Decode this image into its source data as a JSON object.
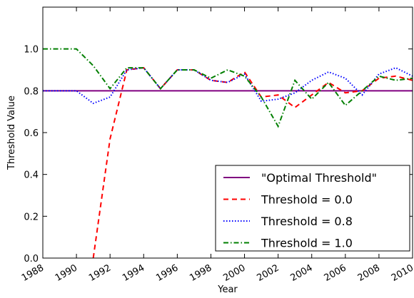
{
  "chart_data": {
    "type": "line",
    "xlabel": "Year",
    "ylabel": "Threshold Value",
    "x": [
      1988,
      1989,
      1990,
      1991,
      1992,
      1993,
      1994,
      1995,
      1996,
      1997,
      1998,
      1999,
      2000,
      2001,
      2002,
      2003,
      2004,
      2005,
      2006,
      2007,
      2008,
      2009,
      2010
    ],
    "series": [
      {
        "name": "\"Optimal Threshold\"",
        "color": "#800080",
        "linestyle": "solid",
        "values": [
          0.8,
          0.8,
          0.8,
          0.8,
          0.8,
          0.8,
          0.8,
          0.8,
          0.8,
          0.8,
          0.8,
          0.8,
          0.8,
          0.8,
          0.8,
          0.8,
          0.8,
          0.8,
          0.8,
          0.8,
          0.8,
          0.8,
          0.8
        ]
      },
      {
        "name": "Threshold = 0.0",
        "color": "#ff0000",
        "linestyle": "dashed",
        "values": [
          null,
          null,
          null,
          0,
          0.57,
          0.9,
          0.91,
          0.81,
          0.9,
          0.9,
          0.85,
          0.84,
          0.89,
          0.77,
          0.78,
          0.72,
          0.78,
          0.84,
          0.79,
          0.8,
          0.86,
          0.87,
          0.85
        ]
      },
      {
        "name": "Threshold = 0.8",
        "color": "#0000ff",
        "linestyle": "dotted",
        "values": [
          0.8,
          0.8,
          0.8,
          0.74,
          0.77,
          0.9,
          0.91,
          0.81,
          0.9,
          0.9,
          0.85,
          0.84,
          0.88,
          0.75,
          0.76,
          0.79,
          0.85,
          0.89,
          0.86,
          0.78,
          0.88,
          0.91,
          0.87
        ]
      },
      {
        "name": "Threshold = 1.0",
        "color": "#007f00",
        "linestyle": "dashdot",
        "values": [
          1.0,
          1.0,
          1.0,
          0.92,
          0.81,
          0.91,
          0.91,
          0.81,
          0.9,
          0.9,
          0.86,
          0.9,
          0.87,
          0.77,
          0.63,
          0.85,
          0.76,
          0.84,
          0.73,
          0.8,
          0.87,
          0.85,
          0.86
        ]
      }
    ],
    "xlim": [
      1988,
      2010
    ],
    "xticks": [
      1988,
      1990,
      1992,
      1994,
      1996,
      1998,
      2000,
      2002,
      2004,
      2006,
      2008,
      2010
    ],
    "ylim": [
      0,
      1.2
    ],
    "yticks": [
      {
        "value": 0,
        "label": "0.0"
      },
      0.2,
      0.4,
      0.6,
      0.8,
      {
        "value": 1,
        "label": "1.0"
      }
    ],
    "legend": "lower right"
  }
}
